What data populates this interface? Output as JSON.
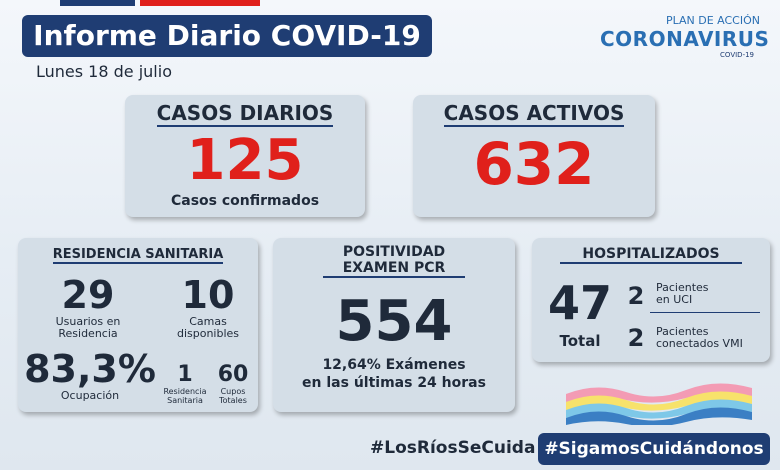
{
  "header": {
    "title": "Informe Diario COVID-19",
    "date": "Lunes 18 de julio"
  },
  "logo": {
    "top": "PLAN DE ACCIÓN",
    "main": "CORONAVIRUS",
    "sub": "COVID-19"
  },
  "casos_diarios": {
    "title": "CASOS DIARIOS",
    "value": 125,
    "caption": "Casos confirmados"
  },
  "casos_activos": {
    "title": "CASOS ACTIVOS",
    "value": 632
  },
  "residencia": {
    "title": "RESIDENCIA SANITARIA",
    "usuarios": {
      "value": 29,
      "label": [
        "Usuarios en",
        "Residencia"
      ]
    },
    "camas": {
      "value": 10,
      "label": [
        "Camas",
        "disponibles"
      ]
    },
    "ocupacion": {
      "value": "83,3%",
      "label": [
        "Ocupación"
      ]
    },
    "residencias": {
      "value": 1,
      "label": [
        "Residencia",
        "Sanitaria"
      ]
    },
    "cupos": {
      "value": 60,
      "label": [
        "Cupos",
        "Totales"
      ]
    }
  },
  "positividad": {
    "title": [
      "POSITIVIDAD",
      "EXAMEN PCR"
    ],
    "value": 554,
    "caption": [
      "12,64% Exámenes",
      "en las últimas 24 horas"
    ]
  },
  "hospitalizados": {
    "title": "HOSPITALIZADOS",
    "total": {
      "value": 47,
      "label": "Total"
    },
    "uci": {
      "value": 2,
      "label": [
        "Pacientes",
        "en UCI"
      ]
    },
    "vmi": {
      "value": 2,
      "label": [
        "Pacientes",
        "conectados VMI"
      ]
    }
  },
  "footer": {
    "hashtag_1": "#LosRíosSeCuida",
    "hashtag_2": "#SigamosCuidándonos"
  }
}
